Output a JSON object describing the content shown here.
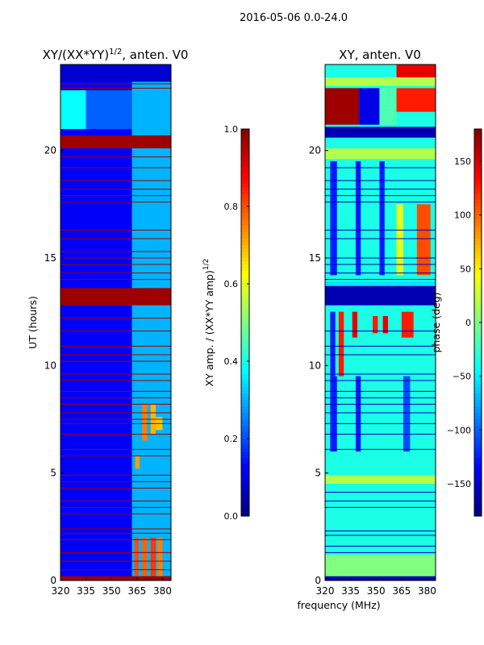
{
  "figure": {
    "suptitle": "2016-05-06 0.0-24.0",
    "shared_xlabel": "frequency (MHz)"
  },
  "colormap": "jet",
  "chart_data": [
    {
      "type": "heatmap",
      "title": "XY/(XX*YY)",
      "title_superscript": "1/2",
      "title_suffix": ", anten. V0",
      "xlabel": "",
      "ylabel": "UT (hours)",
      "xlim": [
        320,
        385
      ],
      "ylim": [
        0,
        24
      ],
      "xticks": [
        320,
        335,
        350,
        365,
        380
      ],
      "yticks": [
        0,
        5,
        10,
        15,
        20
      ],
      "colorbar": {
        "label": "XY amp. / (XX*YY amp)",
        "label_superscript": "1/2",
        "range": [
          0.0,
          1.0
        ],
        "ticks": [
          "0.0",
          "0.2",
          "0.4",
          "0.6",
          "0.8",
          "1.0"
        ]
      },
      "background_value": 0.12,
      "bands": [
        {
          "x0": 362,
          "x1": 385,
          "y0": 0,
          "y1": 24,
          "value": 0.3
        },
        {
          "x0": 363.5,
          "x1": 366,
          "y0": 0.2,
          "y1": 2,
          "value": 0.8
        },
        {
          "x0": 368,
          "x1": 371,
          "y0": 0.2,
          "y1": 2,
          "value": 0.78
        },
        {
          "x0": 373,
          "x1": 376,
          "y0": 0.2,
          "y1": 2,
          "value": 0.82
        },
        {
          "x0": 377,
          "x1": 380,
          "y0": 0.2,
          "y1": 2,
          "value": 0.75
        },
        {
          "x0": 364,
          "x1": 366.5,
          "y0": 5.2,
          "y1": 5.8,
          "value": 0.72
        },
        {
          "x0": 368,
          "x1": 371,
          "y0": 6.5,
          "y1": 8.2,
          "value": 0.75
        },
        {
          "x0": 373,
          "x1": 376,
          "y0": 6.8,
          "y1": 8.2,
          "value": 0.7
        },
        {
          "x0": 376,
          "x1": 380,
          "y0": 7.0,
          "y1": 7.6,
          "value": 0.68
        },
        {
          "x0": 320,
          "x1": 335,
          "y0": 21.0,
          "y1": 22.8,
          "value": 0.38
        },
        {
          "x0": 335,
          "x1": 362,
          "y0": 21.0,
          "y1": 22.8,
          "value": 0.22
        },
        {
          "x0": 320,
          "x1": 385,
          "y0": 20.1,
          "y1": 20.7,
          "value": 0.97
        },
        {
          "x0": 320,
          "x1": 385,
          "y0": 12.8,
          "y1": 13.6,
          "value": 0.97
        },
        {
          "x0": 320,
          "x1": 385,
          "y0": 0,
          "y1": 0.2,
          "value": 0.97
        },
        {
          "x0": 320,
          "x1": 385,
          "y0": 23.2,
          "y1": 24,
          "value": 0.08
        }
      ],
      "flag_lines_ut": [
        0.5,
        0.9,
        1.3,
        1.9,
        2.2,
        2.4,
        3.1,
        3.4,
        3.7,
        4.3,
        4.6,
        4.9,
        5.8,
        6.1,
        6.8,
        7.3,
        7.5,
        7.8,
        8.2,
        8.5,
        8.8,
        9.3,
        9.6,
        10.2,
        10.5,
        10.9,
        11.6,
        12.2,
        14.0,
        14.3,
        14.7,
        15.0,
        15.3,
        15.9,
        16.3,
        17.6,
        17.9,
        18.2,
        18.6,
        19.2,
        19.7,
        22.9,
        23.1
      ]
    },
    {
      "type": "heatmap",
      "title": "XY, anten. V0",
      "xlabel": "frequency (MHz)",
      "ylabel": "",
      "xlim": [
        320,
        385
      ],
      "ylim": [
        0,
        24
      ],
      "xticks": [
        320,
        335,
        350,
        365,
        380
      ],
      "yticks": [
        0,
        5,
        10,
        15,
        20
      ],
      "colorbar": {
        "label": "phase (deg)",
        "range": [
          -180,
          180
        ],
        "ticks": [
          "−150",
          "−100",
          "−50",
          "0",
          "50",
          "100",
          "150"
        ],
        "tick_values": [
          -150,
          -100,
          -50,
          0,
          50,
          100,
          150
        ]
      },
      "background_value": 0.4,
      "bands": [
        {
          "x0": 320,
          "x1": 385,
          "y0": 0,
          "y1": 0.2,
          "value": 0.05
        },
        {
          "x0": 320,
          "x1": 385,
          "y0": 0.2,
          "y1": 1.2,
          "value": 0.5
        },
        {
          "x0": 320,
          "x1": 385,
          "y0": 4.5,
          "y1": 4.9,
          "value": 0.55
        },
        {
          "x0": 320,
          "x1": 385,
          "y0": 5.0,
          "y1": 5.8,
          "value": 0.4
        },
        {
          "x0": 320,
          "x1": 385,
          "y0": 12.8,
          "y1": 13.7,
          "value": 0.05
        },
        {
          "x0": 320,
          "x1": 385,
          "y0": 13.7,
          "y1": 13.9,
          "value": 0.35
        },
        {
          "x0": 320,
          "x1": 385,
          "y0": 20.6,
          "y1": 21.1,
          "value": 0.05
        },
        {
          "x0": 320,
          "x1": 385,
          "y0": 19.6,
          "y1": 20.1,
          "value": 0.55
        },
        {
          "x0": 320,
          "x1": 385,
          "y0": 23.0,
          "y1": 23.4,
          "value": 0.55
        },
        {
          "x0": 320,
          "x1": 340,
          "y0": 21.2,
          "y1": 22.9,
          "value": 0.97
        },
        {
          "x0": 340,
          "x1": 352,
          "y0": 21.2,
          "y1": 22.9,
          "value": 0.1
        },
        {
          "x0": 352,
          "x1": 362,
          "y0": 21.2,
          "y1": 22.9,
          "value": 0.45
        },
        {
          "x0": 362,
          "x1": 385,
          "y0": 23.4,
          "y1": 24,
          "value": 0.9
        },
        {
          "x0": 362,
          "x1": 385,
          "y0": 21.8,
          "y1": 22.9,
          "value": 0.85
        },
        {
          "x0": 323,
          "x1": 326,
          "y0": 9.5,
          "y1": 12.5,
          "value": 0.15
        },
        {
          "x0": 328,
          "x1": 331,
          "y0": 9.5,
          "y1": 12.5,
          "value": 0.85
        },
        {
          "x0": 336,
          "x1": 339,
          "y0": 11.3,
          "y1": 12.5,
          "value": 0.9
        },
        {
          "x0": 348,
          "x1": 351,
          "y0": 11.5,
          "y1": 12.3,
          "value": 0.85
        },
        {
          "x0": 354,
          "x1": 357,
          "y0": 11.5,
          "y1": 12.3,
          "value": 0.9
        },
        {
          "x0": 365,
          "x1": 372,
          "y0": 11.3,
          "y1": 12.5,
          "value": 0.85
        },
        {
          "x0": 374,
          "x1": 382,
          "y0": 14.2,
          "y1": 17.5,
          "value": 0.8
        },
        {
          "x0": 362,
          "x1": 366,
          "y0": 14.2,
          "y1": 17.5,
          "value": 0.6
        },
        {
          "x0": 323,
          "x1": 327,
          "y0": 14.2,
          "y1": 19.5,
          "value": 0.15
        },
        {
          "x0": 338,
          "x1": 341,
          "y0": 14.2,
          "y1": 19.5,
          "value": 0.15
        },
        {
          "x0": 352,
          "x1": 355,
          "y0": 14.2,
          "y1": 19.5,
          "value": 0.15
        },
        {
          "x0": 323,
          "x1": 327,
          "y0": 6,
          "y1": 9.5,
          "value": 0.15
        },
        {
          "x0": 338,
          "x1": 341,
          "y0": 6,
          "y1": 9.5,
          "value": 0.15
        },
        {
          "x0": 366,
          "x1": 370,
          "y0": 6,
          "y1": 9.5,
          "value": 0.2
        }
      ],
      "flag_lines_ut": [
        1.3,
        1.6,
        2.1,
        2.3,
        3.4,
        3.7,
        4.1,
        6.1,
        6.8,
        7.3,
        7.8,
        8.2,
        8.5,
        8.8,
        9.3,
        9.6,
        10.5,
        10.9,
        11.6,
        14.0,
        14.3,
        14.7,
        15.0,
        15.9,
        16.3,
        17.6,
        17.9,
        18.2,
        18.6,
        19.2
      ]
    }
  ]
}
